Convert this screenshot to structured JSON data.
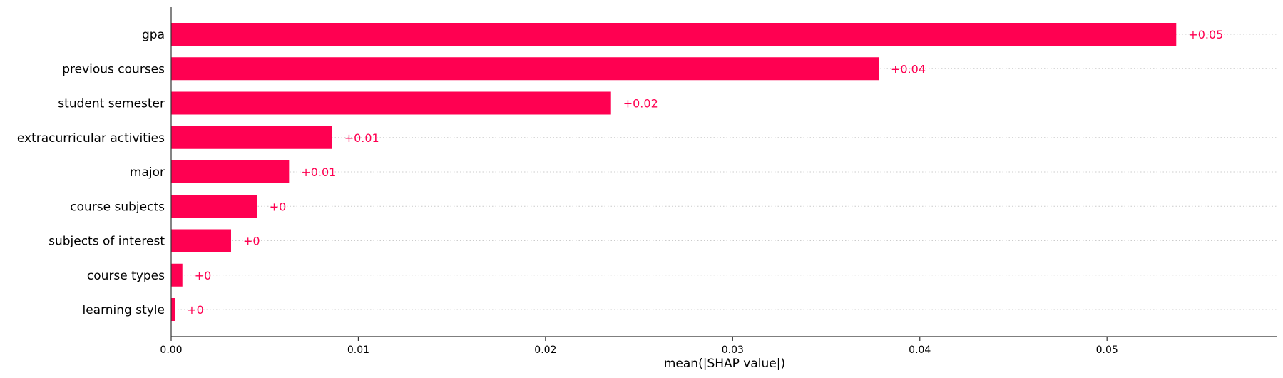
{
  "chart_data": {
    "type": "bar",
    "orientation": "horizontal",
    "categories": [
      "gpa",
      "previous courses",
      "student semester",
      "extracurricular activities",
      "major",
      "course subjects",
      "subjects of interest",
      "course types",
      "learning style"
    ],
    "values": [
      0.0537,
      0.0378,
      0.0235,
      0.0086,
      0.0063,
      0.0046,
      0.0032,
      0.0006,
      0.0002
    ],
    "value_labels": [
      "+0.05",
      "+0.04",
      "+0.02",
      "+0.01",
      "+0.01",
      "+0",
      "+0",
      "+0",
      "+0"
    ],
    "xlabel": "mean(|SHAP value|)",
    "xlim": [
      0,
      0.0591
    ],
    "xticks": [
      0.0,
      0.01,
      0.02,
      0.03,
      0.04,
      0.05
    ],
    "xtick_labels": [
      "0.00",
      "0.01",
      "0.02",
      "0.03",
      "0.04",
      "0.05"
    ],
    "grid": "horizontal dotted row guides",
    "legend": "none",
    "colors": {
      "bar": "#ff0051",
      "label": "#ff0051",
      "grid": "#cccccc",
      "axis": "#333333"
    }
  }
}
